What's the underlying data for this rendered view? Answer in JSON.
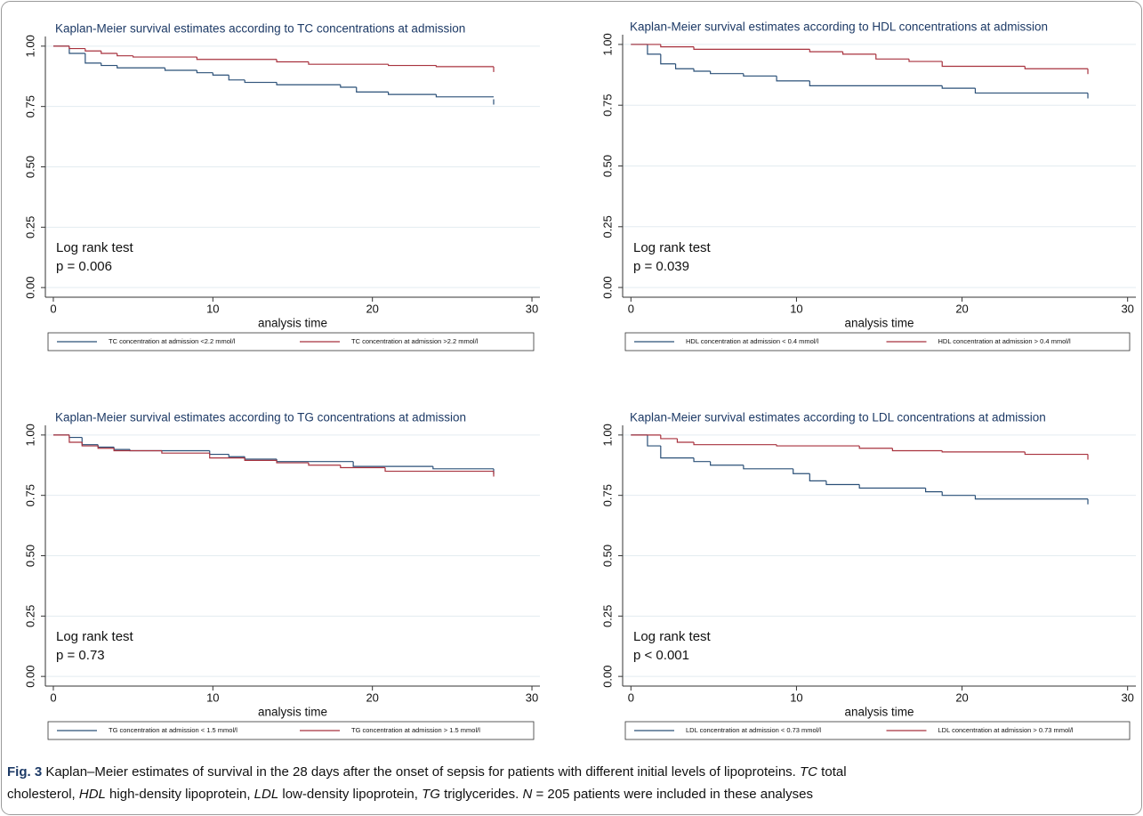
{
  "chart_data": [
    {
      "type": "step",
      "title": "Kaplan-Meier survival estimates according to TC concentrations at admission",
      "x_label": "analysis time",
      "annotations": [
        "Log rank test",
        "p = 0.006"
      ],
      "xlim": [
        -0.5,
        30.5
      ],
      "xticks": [
        0,
        10,
        20,
        30
      ],
      "ylim": [
        -0.04,
        1.04
      ],
      "yticks": [
        {
          "value": 0,
          "label": "0.00"
        },
        {
          "value": 0.25,
          "label": "0.25"
        },
        {
          "value": 0.5,
          "label": "0.50"
        },
        {
          "value": 0.75,
          "label": "0.75"
        },
        {
          "value": 1,
          "label": "1.00"
        }
      ],
      "grid": true,
      "series": [
        {
          "name": "TC concentration at admission <2.2 mmol/l",
          "color": "#2b5078",
          "x": [
            0,
            1,
            2,
            3,
            4,
            7,
            9,
            10,
            11,
            12,
            14,
            18,
            19,
            21,
            24,
            27.6
          ],
          "values": [
            1,
            0.97,
            0.93,
            0.92,
            0.91,
            0.9,
            0.89,
            0.88,
            0.86,
            0.85,
            0.84,
            0.83,
            0.81,
            0.8,
            0.79,
            0.78
          ]
        },
        {
          "name": "TC concentration at admission >2.2 mmol/l",
          "color": "#a8323e",
          "x": [
            0,
            1,
            2,
            3,
            4,
            5,
            9,
            14,
            16,
            21,
            24,
            27.6
          ],
          "values": [
            1,
            0.99,
            0.98,
            0.97,
            0.96,
            0.955,
            0.945,
            0.935,
            0.925,
            0.92,
            0.915,
            0.915
          ]
        }
      ]
    },
    {
      "type": "step",
      "title": "Kaplan-Meier survival estimates according to HDL concentrations at admission",
      "x_label": "analysis time",
      "annotations": [
        "Log rank test",
        "p = 0.039"
      ],
      "xlim": [
        -0.5,
        30.5
      ],
      "xticks": [
        0,
        10,
        20,
        30
      ],
      "ylim": [
        -0.04,
        1.04
      ],
      "yticks": [
        {
          "value": 0,
          "label": "0.00"
        },
        {
          "value": 0.25,
          "label": "0.25"
        },
        {
          "value": 0.5,
          "label": "0.50"
        },
        {
          "value": 0.75,
          "label": "0.75"
        },
        {
          "value": 1,
          "label": "1.00"
        }
      ],
      "grid": true,
      "series": [
        {
          "name": "HDL concentration at admission < 0.4 mmol/l",
          "color": "#2b5078",
          "x": [
            0,
            1,
            1.8,
            2.7,
            3.8,
            4.8,
            6.8,
            8.8,
            10.8,
            18.8,
            20.8,
            27.6
          ],
          "values": [
            1,
            0.96,
            0.92,
            0.9,
            0.89,
            0.88,
            0.87,
            0.85,
            0.83,
            0.82,
            0.8,
            0.8
          ]
        },
        {
          "name": "HDL concentration at admission > 0.4 mmol/l",
          "color": "#a8323e",
          "x": [
            0,
            1.8,
            3.8,
            10.8,
            12.8,
            14.8,
            16.8,
            18.8,
            23.8,
            27.6
          ],
          "values": [
            1,
            0.99,
            0.98,
            0.97,
            0.96,
            0.94,
            0.93,
            0.91,
            0.9,
            0.9
          ]
        }
      ]
    },
    {
      "type": "step",
      "title": "Kaplan-Meier survival estimates according to TG concentrations at admission",
      "x_label": "analysis time",
      "annotations": [
        "Log rank test",
        "p = 0.73"
      ],
      "xlim": [
        -0.5,
        30.5
      ],
      "xticks": [
        0,
        10,
        20,
        30
      ],
      "ylim": [
        -0.04,
        1.04
      ],
      "yticks": [
        {
          "value": 0,
          "label": "0.00"
        },
        {
          "value": 0.25,
          "label": "0.25"
        },
        {
          "value": 0.5,
          "label": "0.50"
        },
        {
          "value": 0.75,
          "label": "0.75"
        },
        {
          "value": 1,
          "label": "1.00"
        }
      ],
      "grid": true,
      "series": [
        {
          "name": "TG concentration at admission < 1.5 mmol/l",
          "color": "#2b5078",
          "x": [
            0,
            1,
            1.8,
            2.8,
            3.8,
            4.8,
            9.8,
            11,
            12,
            14,
            18.8,
            23.8,
            27.6
          ],
          "values": [
            1,
            0.99,
            0.96,
            0.95,
            0.94,
            0.935,
            0.92,
            0.91,
            0.9,
            0.89,
            0.87,
            0.86,
            0.86
          ]
        },
        {
          "name": "TG concentration at admission > 1.5 mmol/l",
          "color": "#a8323e",
          "x": [
            0,
            1,
            1.8,
            2.8,
            3.8,
            6.8,
            9.8,
            12,
            14,
            16,
            18,
            20.8,
            27.6
          ],
          "values": [
            1,
            0.97,
            0.955,
            0.945,
            0.935,
            0.925,
            0.905,
            0.895,
            0.885,
            0.875,
            0.865,
            0.85,
            0.85
          ]
        }
      ]
    },
    {
      "type": "step",
      "title": "Kaplan-Meier survival estimates according to LDL concentrations at admission",
      "x_label": "analysis time",
      "annotations": [
        "Log rank test",
        "p < 0.001"
      ],
      "xlim": [
        -0.5,
        30.5
      ],
      "xticks": [
        0,
        10,
        20,
        30
      ],
      "ylim": [
        -0.04,
        1.04
      ],
      "yticks": [
        {
          "value": 0,
          "label": "0.00"
        },
        {
          "value": 0.25,
          "label": "0.25"
        },
        {
          "value": 0.5,
          "label": "0.50"
        },
        {
          "value": 0.75,
          "label": "0.75"
        },
        {
          "value": 1,
          "label": "1.00"
        }
      ],
      "grid": true,
      "series": [
        {
          "name": "LDL concentration at admission < 0.73 mmol/l",
          "color": "#2b5078",
          "x": [
            0,
            1,
            1.8,
            3.8,
            4.8,
            6.8,
            9.8,
            10.8,
            11.8,
            13.8,
            17.8,
            18.8,
            20.8,
            27.6
          ],
          "values": [
            1,
            0.955,
            0.905,
            0.89,
            0.875,
            0.86,
            0.84,
            0.81,
            0.795,
            0.78,
            0.765,
            0.75,
            0.735,
            0.735
          ]
        },
        {
          "name": "LDL concentration at admission > 0.73 mmol/l",
          "color": "#a8323e",
          "x": [
            0,
            1.8,
            2.8,
            3.8,
            8.8,
            13.8,
            15.8,
            18.8,
            23.8,
            27.6
          ],
          "values": [
            1,
            0.985,
            0.97,
            0.96,
            0.955,
            0.945,
            0.935,
            0.93,
            0.92,
            0.92
          ]
        }
      ]
    }
  ],
  "caption": {
    "lines": [
      [
        {
          "text": "Fig. 3",
          "style": "bold"
        },
        " Kaplan–Meier estimates of survival in the 28 days after the onset of sepsis for patients with different initial levels of lipoproteins. ",
        {
          "text": "TC",
          "style": "italic"
        },
        " total"
      ],
      [
        "cholesterol, ",
        {
          "text": "HDL",
          "style": "italic"
        },
        " high-density lipoprotein, ",
        {
          "text": "LDL",
          "style": "italic"
        },
        " low-density lipoprotein, ",
        {
          "text": "TG",
          "style": "italic"
        },
        " triglycerides. ",
        {
          "text": "N",
          "style": "italic"
        },
        " = 205 patients were included in these analyses"
      ]
    ]
  }
}
